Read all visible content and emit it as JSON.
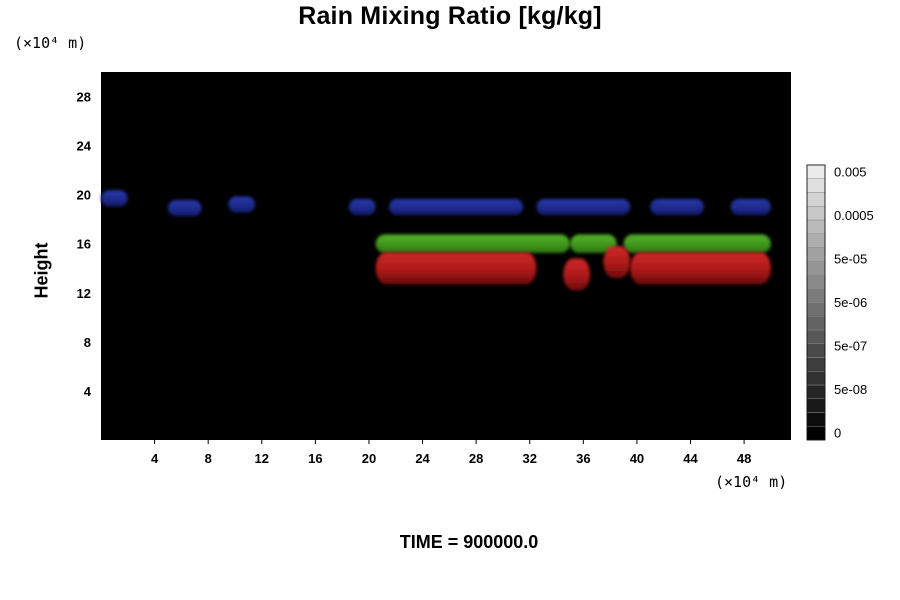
{
  "title": "Rain Mixing Ratio [kg/kg]",
  "y_unit": "(×10⁴ m)",
  "x_unit": "(×10⁴ m)",
  "footer": "TIME = 900000.0",
  "chart_data": {
    "type": "heatmap",
    "title": "Rain Mixing Ratio [kg/kg]",
    "xlabel": "",
    "ylabel": "Height",
    "xlim": [
      0,
      51.5
    ],
    "ylim": [
      0,
      30
    ],
    "x_ticks": [
      4,
      8,
      12,
      16,
      20,
      24,
      28,
      32,
      36,
      40,
      44,
      48
    ],
    "y_ticks": [
      4,
      8,
      12,
      16,
      20,
      24,
      28
    ],
    "background_color": "#000000",
    "colorbar": {
      "levels": 20,
      "color_low": "#000000",
      "color_high": "#ececec",
      "range_exponent": [
        -9,
        -2
      ],
      "tick_labels": [
        "0",
        "5e-08",
        "5e-07",
        "5e-06",
        "5e-05",
        "0.0005",
        "0.005"
      ]
    },
    "features": [
      {
        "band": "upper",
        "color": "#1c2a9a",
        "segments": [
          [
            0,
            2,
            19.7
          ],
          [
            5,
            7.5,
            18.9
          ],
          [
            9.5,
            11.5,
            19.2
          ],
          [
            18.5,
            20.5,
            19.0
          ],
          [
            21.5,
            31.5,
            19.0
          ],
          [
            32.5,
            39.5,
            19.0
          ],
          [
            41,
            45,
            19.0
          ],
          [
            47,
            50,
            19.0
          ]
        ]
      },
      {
        "band": "middle",
        "color": "#3f9a1a",
        "segments": [
          [
            20.5,
            35,
            16.0
          ],
          [
            35,
            38.5,
            16.0
          ],
          [
            39,
            50,
            16.0
          ]
        ]
      },
      {
        "band": "lower",
        "color": "#c42020",
        "segments": [
          [
            20.5,
            32.5,
            14.0
          ],
          [
            34.5,
            36.5,
            13.5
          ],
          [
            37.5,
            39.5,
            14.5
          ],
          [
            39.5,
            50,
            14.0
          ]
        ]
      }
    ]
  }
}
